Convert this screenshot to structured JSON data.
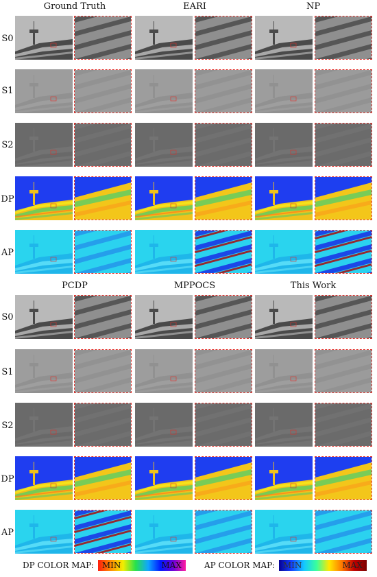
{
  "groups": [
    {
      "columns": [
        "Ground Truth",
        "EARI",
        "NP"
      ]
    },
    {
      "columns": [
        "PCDP",
        "MPPOCS",
        "This Work"
      ]
    }
  ],
  "row_labels": [
    "S0",
    "S1",
    "S2",
    "DP",
    "AP"
  ],
  "legend": {
    "dp_label": "DP COLOR MAP:",
    "ap_label": "AP COLOR MAP:",
    "min": "MIN",
    "max": "MAX"
  },
  "colors": {
    "inset_border": "#e0312c",
    "dp_sky": "#1f3df0",
    "ap_sky": "#2ad4ee"
  }
}
